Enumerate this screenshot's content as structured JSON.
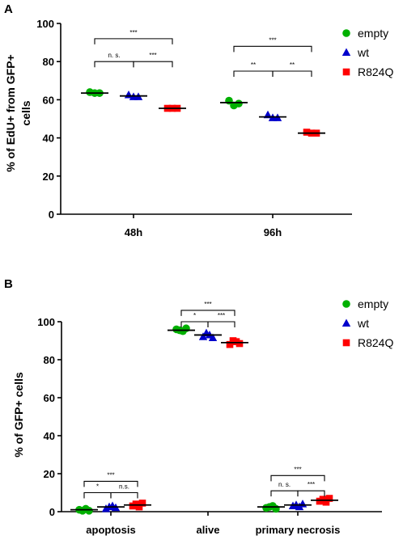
{
  "chart_data": [
    {
      "panel": "A",
      "type": "scatter",
      "ylabel_lines": [
        "% of EdU+ from GFP+",
        "cells"
      ],
      "ylim": [
        0,
        100
      ],
      "yticks": [
        0,
        20,
        40,
        60,
        80,
        100
      ],
      "categories": [
        "48h",
        "96h"
      ],
      "legend": {
        "placement": "top-right"
      },
      "series": [
        {
          "name": "empty",
          "color": "#00b000",
          "marker": "circle",
          "values": [
            [
              64,
              63.5,
              63.5
            ],
            [
              59.5,
              57,
              58
            ]
          ],
          "means": [
            63.5,
            58.5
          ]
        },
        {
          "name": "wt",
          "color": "#0000cc",
          "marker": "triangle",
          "values": [
            [
              62.5,
              61.5,
              61.5
            ],
            [
              52,
              50.5,
              50.5
            ]
          ],
          "means": [
            62,
            51
          ]
        },
        {
          "name": "R824Q",
          "color": "#ff0000",
          "marker": "square",
          "values": [
            [
              55.5,
              55.5,
              55.5
            ],
            [
              43,
              42.5,
              42.5
            ]
          ],
          "means": [
            55.5,
            42.5
          ]
        }
      ],
      "comparisons": [
        {
          "category": 0,
          "from": 0,
          "to": 2,
          "label": "***",
          "y": 92
        },
        {
          "category": 0,
          "from": 0,
          "to": 1,
          "label": "n. s.",
          "y": 80
        },
        {
          "category": 0,
          "from": 1,
          "to": 2,
          "label": "***",
          "y": 80
        },
        {
          "category": 1,
          "from": 0,
          "to": 2,
          "label": "***",
          "y": 88
        },
        {
          "category": 1,
          "from": 0,
          "to": 1,
          "label": "**",
          "y": 75
        },
        {
          "category": 1,
          "from": 1,
          "to": 2,
          "label": "**",
          "y": 75
        }
      ]
    },
    {
      "panel": "B",
      "type": "scatter",
      "ylabel": "% of GFP+ cells",
      "ylim": [
        0,
        100
      ],
      "yticks": [
        0,
        20,
        40,
        60,
        80,
        100
      ],
      "categories": [
        "apoptosis",
        "alive",
        "primary necrosis"
      ],
      "legend": {
        "placement": "top-right"
      },
      "series": [
        {
          "name": "empty",
          "color": "#00b000",
          "marker": "circle",
          "values": [
            [
              1,
              0.5,
              1.5,
              0.5
            ],
            [
              96,
              95.5,
              95,
              96.5
            ],
            [
              2,
              2.5,
              3,
              1.5
            ]
          ],
          "means": [
            1,
            95.5,
            2.5
          ]
        },
        {
          "name": "wt",
          "color": "#0000cc",
          "marker": "triangle",
          "values": [
            [
              1.5,
              2.5,
              3,
              2
            ],
            [
              92,
              94,
              93,
              91.5
            ],
            [
              3,
              3.5,
              2.5,
              4
            ]
          ],
          "means": [
            2.5,
            93,
            3.5
          ]
        },
        {
          "name": "R824Q",
          "color": "#ff0000",
          "marker": "square",
          "values": [
            [
              3,
              4,
              2.5,
              4.5
            ],
            [
              88,
              90,
              89.5,
              88.5
            ],
            [
              5.5,
              6.5,
              5,
              7
            ]
          ],
          "means": [
            3.5,
            89,
            6
          ]
        }
      ],
      "comparisons": [
        {
          "category": 0,
          "from": 0,
          "to": 2,
          "label": "***",
          "y": 16
        },
        {
          "category": 0,
          "from": 0,
          "to": 1,
          "label": "*",
          "y": 10
        },
        {
          "category": 0,
          "from": 1,
          "to": 2,
          "label": "n.s.",
          "y": 10
        },
        {
          "category": 1,
          "from": 0,
          "to": 2,
          "label": "***",
          "y": 106
        },
        {
          "category": 1,
          "from": 0,
          "to": 1,
          "label": "*",
          "y": 100
        },
        {
          "category": 1,
          "from": 1,
          "to": 2,
          "label": "***",
          "y": 100
        },
        {
          "category": 2,
          "from": 0,
          "to": 2,
          "label": "***",
          "y": 19
        },
        {
          "category": 2,
          "from": 0,
          "to": 1,
          "label": "n. s.",
          "y": 11
        },
        {
          "category": 2,
          "from": 1,
          "to": 2,
          "label": "***",
          "y": 11
        }
      ]
    }
  ]
}
